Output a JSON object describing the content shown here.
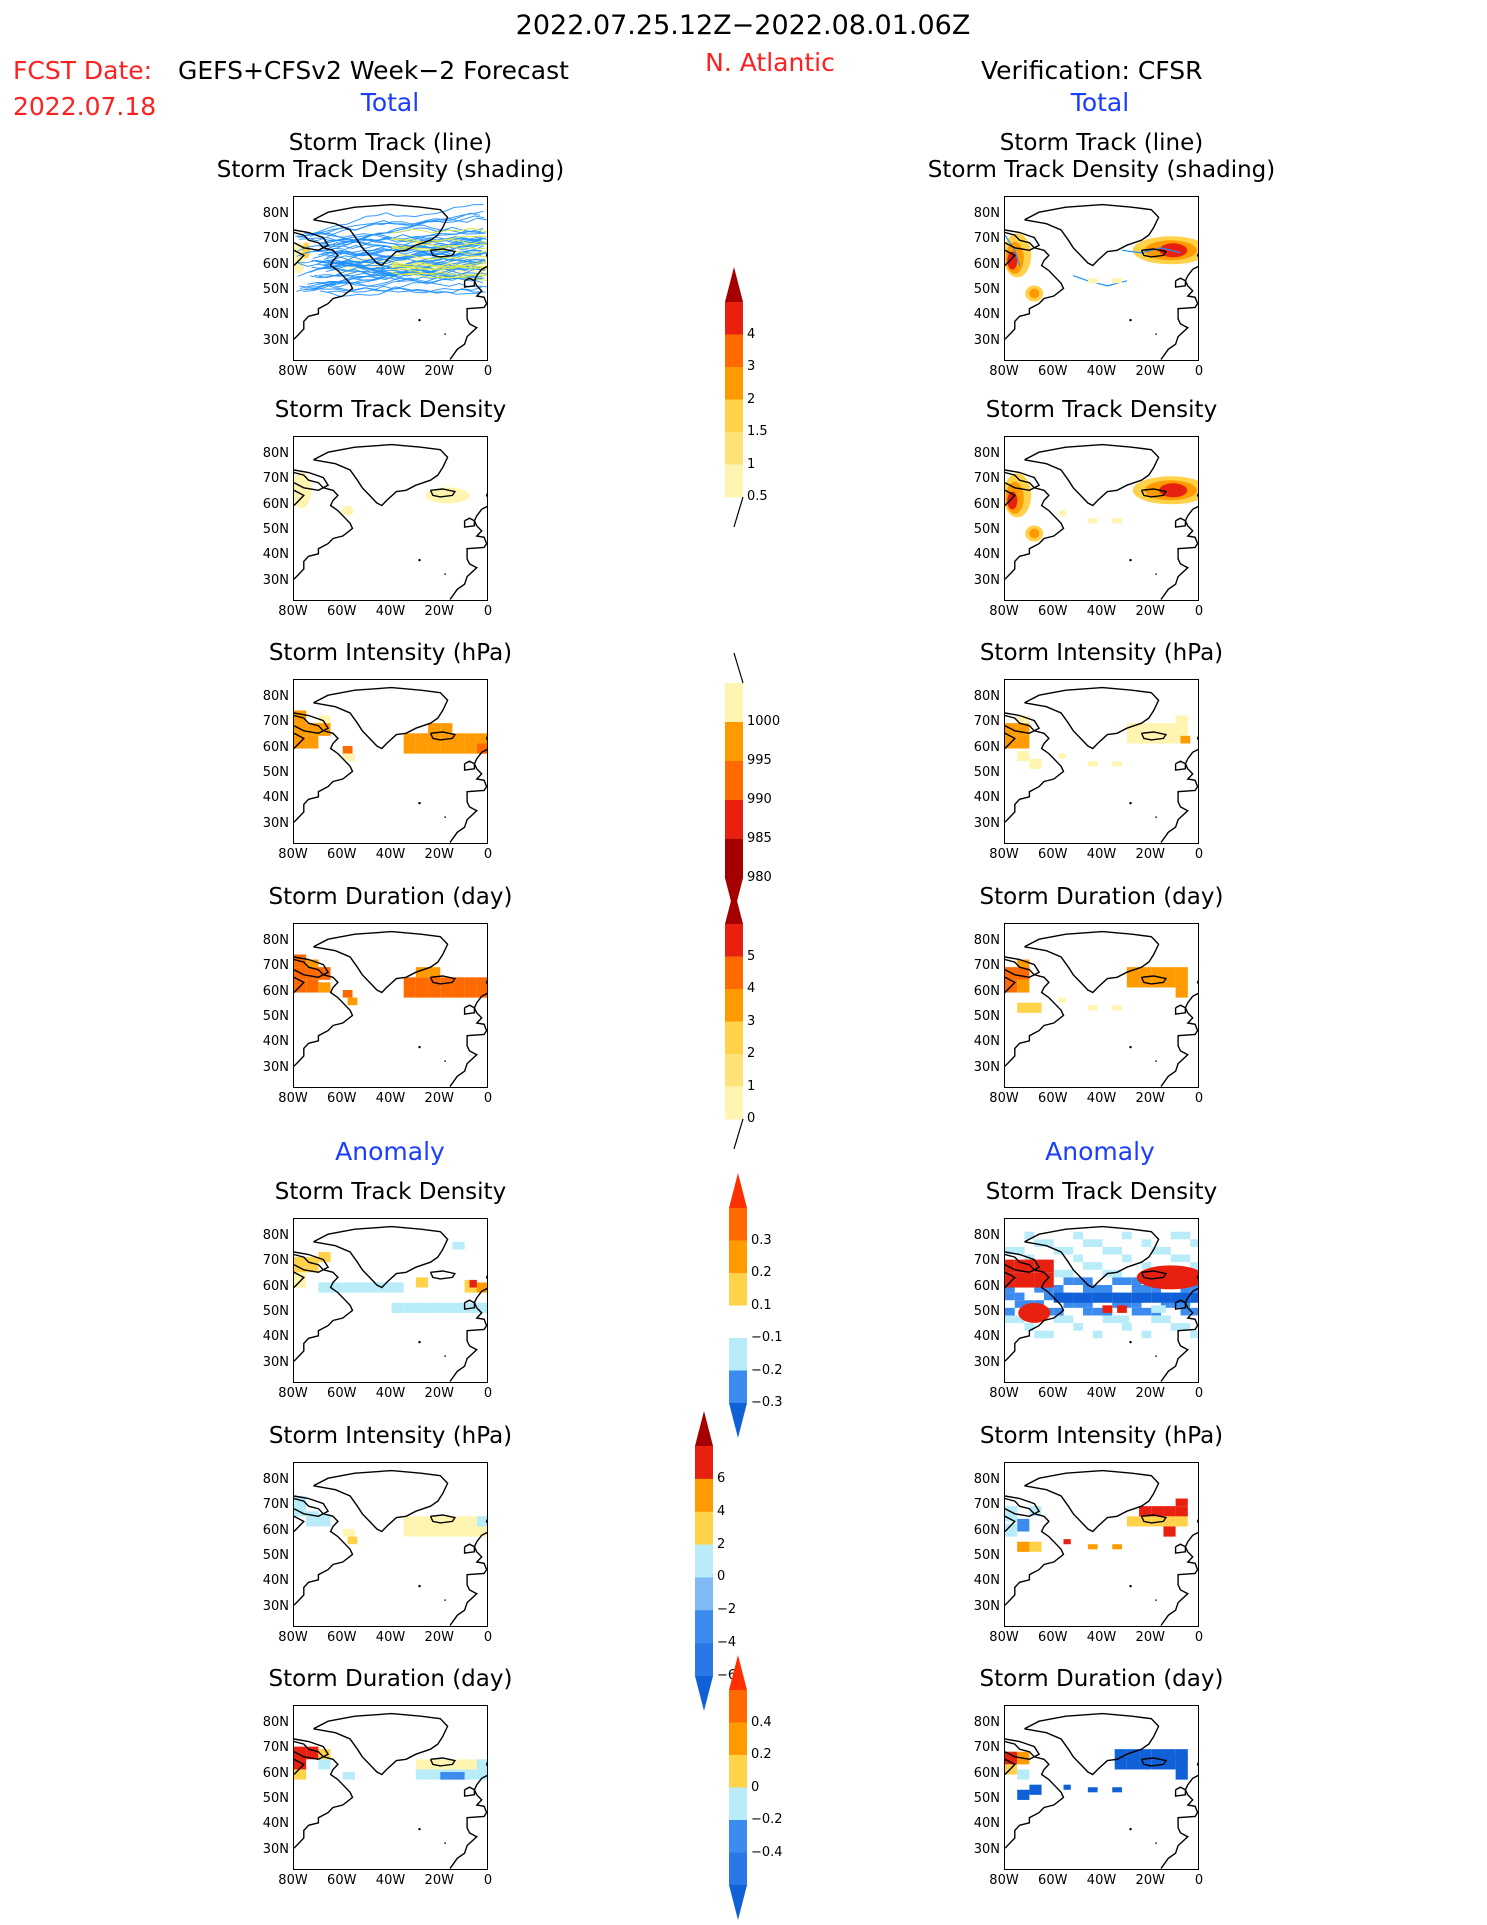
{
  "header": {
    "date_range": "2022.07.25.12Z−2022.08.01.06Z",
    "region": "N. Atlantic",
    "fcst_label": "FCST Date:",
    "fcst_model": "GEFS+CFSv2 Week−2 Forecast",
    "fcst_date": "2022.07.18",
    "verification": "Verification: CFSR",
    "left_total": "Total",
    "right_total": "Total",
    "left_anomaly": "Anomaly",
    "right_anomaly": "Anomaly"
  },
  "panel_titles": {
    "track_line": "Storm Track (line)",
    "track_density_shading": "Storm Track Density (shading)",
    "track_density": "Storm Track Density",
    "intensity": "Storm Intensity (hPa)",
    "duration": "Storm Duration (day)"
  },
  "axes": {
    "lat_ticks": [
      "80N",
      "70N",
      "60N",
      "50N",
      "40N",
      "30N"
    ],
    "lon_ticks": [
      "80W",
      "60W",
      "40W",
      "20W",
      "0"
    ]
  },
  "colorbars": {
    "density_total": [
      "4",
      "3",
      "2",
      "1.5",
      "1",
      "0.5"
    ],
    "intensity_total": [
      "1000",
      "995",
      "990",
      "985",
      "980"
    ],
    "duration_total": [
      "5",
      "4",
      "3",
      "2",
      "1",
      "0"
    ],
    "density_anomaly": [
      "0.3",
      "0.2",
      "0.1",
      "−0.1",
      "−0.2",
      "−0.3"
    ],
    "intensity_anomaly": [
      "6",
      "4",
      "2",
      "0",
      "−2",
      "−4",
      "−6"
    ],
    "duration_anomaly": [
      "0.4",
      "0.2",
      "0",
      "−0.2",
      "−0.4"
    ]
  },
  "colors": {
    "title_red": "#ff2020",
    "title_blue": "#1b3dff",
    "track_blue": "#1e90ff",
    "pale_yellow": "#fff5b0",
    "yellow": "#ffd24a",
    "orange": "#ff9a00",
    "dark_orange": "#ff6a00",
    "red": "#e82010",
    "dark_red": "#a40000",
    "light_blue": "#b8ecf8",
    "blue": "#3c8cf0",
    "dark_blue": "#1060d8"
  }
}
